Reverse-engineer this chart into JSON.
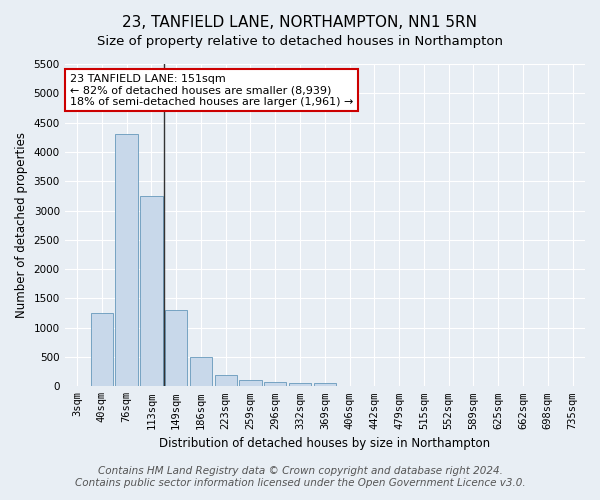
{
  "title": "23, TANFIELD LANE, NORTHAMPTON, NN1 5RN",
  "subtitle": "Size of property relative to detached houses in Northampton",
  "xlabel": "Distribution of detached houses by size in Northampton",
  "ylabel": "Number of detached properties",
  "categories": [
    "3sqm",
    "40sqm",
    "76sqm",
    "113sqm",
    "149sqm",
    "186sqm",
    "223sqm",
    "259sqm",
    "296sqm",
    "332sqm",
    "369sqm",
    "406sqm",
    "442sqm",
    "479sqm",
    "515sqm",
    "552sqm",
    "589sqm",
    "625sqm",
    "662sqm",
    "698sqm",
    "735sqm"
  ],
  "values": [
    0,
    1250,
    4300,
    3250,
    1300,
    500,
    200,
    100,
    80,
    60,
    50,
    0,
    0,
    0,
    0,
    0,
    0,
    0,
    0,
    0,
    0
  ],
  "bar_color": "#c8d8ea",
  "bar_edge_color": "#6699bb",
  "vline_color": "#333333",
  "vline_x": 3.5,
  "annotation_text": "23 TANFIELD LANE: 151sqm\n← 82% of detached houses are smaller (8,939)\n18% of semi-detached houses are larger (1,961) →",
  "annotation_box_color": "white",
  "annotation_box_edge_color": "#cc0000",
  "ylim": [
    0,
    5500
  ],
  "yticks": [
    0,
    500,
    1000,
    1500,
    2000,
    2500,
    3000,
    3500,
    4000,
    4500,
    5000,
    5500
  ],
  "footer1": "Contains HM Land Registry data © Crown copyright and database right 2024.",
  "footer2": "Contains public sector information licensed under the Open Government Licence v3.0.",
  "background_color": "#e8eef4",
  "plot_background_color": "#e8eef4",
  "title_fontsize": 11,
  "subtitle_fontsize": 9.5,
  "axis_label_fontsize": 8.5,
  "tick_fontsize": 7.5,
  "annotation_fontsize": 8,
  "footer_fontsize": 7.5
}
